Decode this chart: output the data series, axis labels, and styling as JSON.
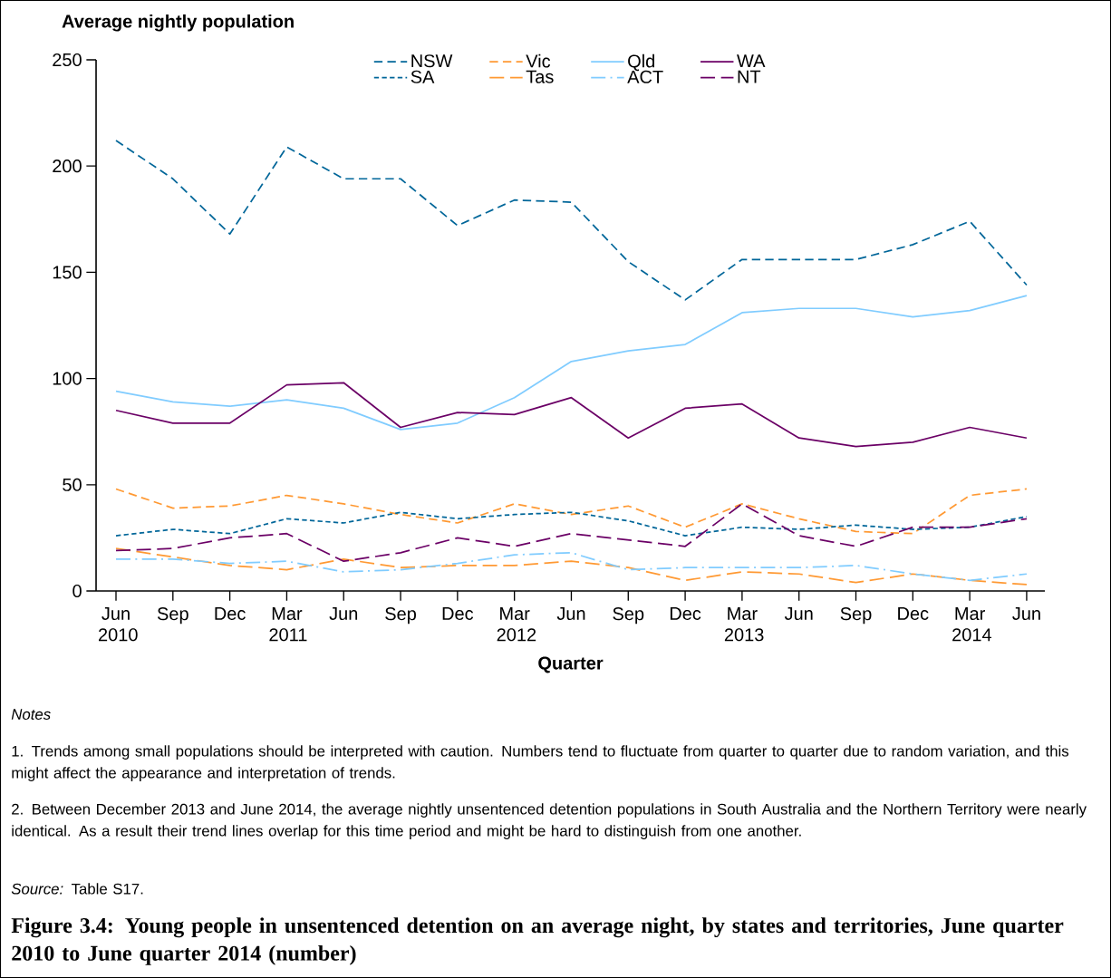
{
  "chart_data": {
    "type": "line",
    "title": "Figure 3.4: Young people in unsentenced detention on an average night, by states and territories, June quarter 2010 to June quarter 2014 (number)",
    "ylabel": "Average nightly population",
    "xlabel": "Quarter",
    "categories": [
      "Jun 2010",
      "Sep",
      "Dec",
      "Mar 2011",
      "Jun",
      "Sep",
      "Dec",
      "Mar 2012",
      "Jun",
      "Sep",
      "Dec",
      "Mar 2013",
      "Jun",
      "Sep",
      "Dec",
      "Mar 2014",
      "Jun"
    ],
    "series": [
      {
        "name": "NSW",
        "color": "#006699",
        "line_style": "dashed",
        "values": [
          212,
          194,
          168,
          209,
          194,
          194,
          172,
          184,
          183,
          155,
          137,
          156,
          156,
          156,
          163,
          174,
          144
        ]
      },
      {
        "name": "Vic",
        "color": "#ff9933",
        "line_style": "dashed",
        "values": [
          48,
          39,
          40,
          45,
          41,
          36,
          32,
          41,
          36,
          40,
          30,
          41,
          34,
          28,
          27,
          45,
          48
        ]
      },
      {
        "name": "Qld",
        "color": "#80ccff",
        "line_style": "solid",
        "values": [
          94,
          89,
          87,
          90,
          86,
          76,
          79,
          91,
          108,
          113,
          116,
          131,
          133,
          133,
          129,
          132,
          139
        ]
      },
      {
        "name": "WA",
        "color": "#6b0066",
        "line_style": "solid",
        "values": [
          85,
          79,
          79,
          97,
          98,
          77,
          84,
          83,
          91,
          72,
          86,
          88,
          72,
          68,
          70,
          77,
          72
        ]
      },
      {
        "name": "SA",
        "color": "#006699",
        "line_style": "dotted",
        "values": [
          26,
          29,
          27,
          34,
          32,
          37,
          34,
          36,
          37,
          33,
          26,
          30,
          29,
          31,
          29,
          30,
          35
        ]
      },
      {
        "name": "Tas",
        "color": "#ff9933",
        "line_style": "longdashed",
        "values": [
          20,
          16,
          12,
          10,
          15,
          11,
          12,
          12,
          14,
          11,
          5,
          9,
          8,
          4,
          8,
          5,
          3
        ]
      },
      {
        "name": "ACT",
        "color": "#80ccff",
        "line_style": "dashdot",
        "values": [
          15,
          15,
          13,
          14,
          9,
          10,
          13,
          17,
          18,
          10,
          11,
          11,
          11,
          12,
          8,
          5,
          8
        ]
      },
      {
        "name": "NT",
        "color": "#6b0066",
        "line_style": "longdashed",
        "values": [
          19,
          20,
          25,
          27,
          14,
          18,
          25,
          21,
          27,
          24,
          21,
          41,
          26,
          21,
          30,
          30,
          34
        ]
      }
    ],
    "ylim": [
      0,
      250
    ],
    "yticks": [
      0,
      50,
      100,
      150,
      200,
      250
    ],
    "grid": false,
    "legend": "top",
    "annotations": [
      "*Notes*",
      "1. Trends among small populations should be interpreted with caution. Numbers tend to fluctuate from quarter to quarter due to random variation, and this might affect the appearance and interpretation of trends.",
      "2. Between December 2013 and June 2014, the average nightly unsentenced detention populations in South Australia and the Northern Territory were nearly identical. As a result their trend lines overlap for this time period and might be hard to distinguish from one another.",
      "*Source:* Table S17."
    ]
  }
}
